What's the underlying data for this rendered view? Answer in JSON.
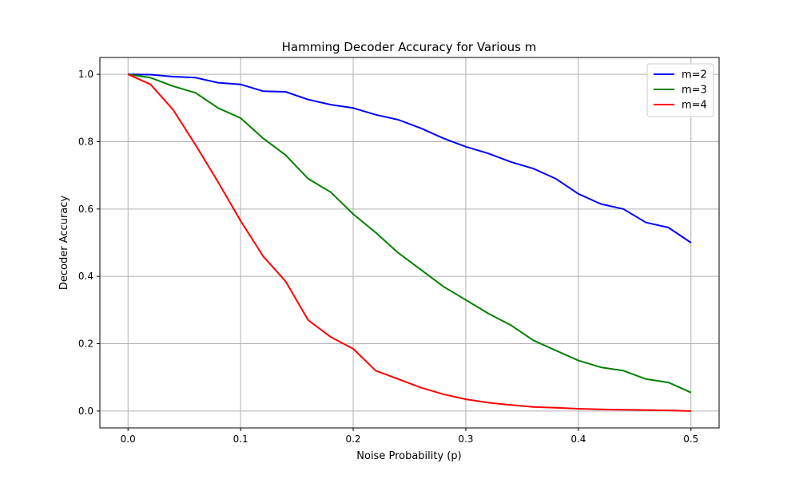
{
  "chart_data": {
    "type": "line",
    "title": "Hamming Decoder Accuracy for Various m",
    "xlabel": "Noise Probability (p)",
    "ylabel": "Decoder Accuracy",
    "xlim": [
      -0.025,
      0.525
    ],
    "ylim": [
      -0.05,
      1.05
    ],
    "xticks": [
      0.0,
      0.1,
      0.2,
      0.3,
      0.4,
      0.5
    ],
    "xtick_labels": [
      "0.0",
      "0.1",
      "0.2",
      "0.3",
      "0.4",
      "0.5"
    ],
    "yticks": [
      0.0,
      0.2,
      0.4,
      0.6,
      0.8,
      1.0
    ],
    "ytick_labels": [
      "0.0",
      "0.2",
      "0.4",
      "0.6",
      "0.8",
      "1.0"
    ],
    "grid": true,
    "legend_position": "top-right",
    "x": [
      0.0,
      0.02,
      0.04,
      0.06,
      0.08,
      0.1,
      0.12,
      0.14,
      0.16,
      0.18,
      0.2,
      0.22,
      0.24,
      0.26,
      0.28,
      0.3,
      0.32,
      0.34,
      0.36,
      0.38,
      0.4,
      0.42,
      0.44,
      0.46,
      0.48,
      0.5
    ],
    "series": [
      {
        "name": "m=2",
        "color": "#0000ff",
        "values": [
          1.0,
          0.999,
          0.993,
          0.99,
          0.975,
          0.97,
          0.95,
          0.948,
          0.925,
          0.91,
          0.9,
          0.88,
          0.865,
          0.84,
          0.81,
          0.785,
          0.765,
          0.74,
          0.72,
          0.69,
          0.645,
          0.615,
          0.6,
          0.56,
          0.545,
          0.5
        ]
      },
      {
        "name": "m=3",
        "color": "#008000",
        "values": [
          1.0,
          0.99,
          0.965,
          0.945,
          0.9,
          0.87,
          0.81,
          0.76,
          0.69,
          0.65,
          0.585,
          0.53,
          0.47,
          0.42,
          0.37,
          0.33,
          0.29,
          0.255,
          0.21,
          0.18,
          0.15,
          0.13,
          0.12,
          0.095,
          0.085,
          0.055
        ]
      },
      {
        "name": "m=4",
        "color": "#ff0000",
        "values": [
          1.0,
          0.97,
          0.895,
          0.79,
          0.68,
          0.565,
          0.46,
          0.385,
          0.27,
          0.22,
          0.185,
          0.12,
          0.095,
          0.07,
          0.05,
          0.035,
          0.025,
          0.018,
          0.012,
          0.01,
          0.007,
          0.005,
          0.004,
          0.003,
          0.002,
          0.0
        ]
      }
    ]
  }
}
